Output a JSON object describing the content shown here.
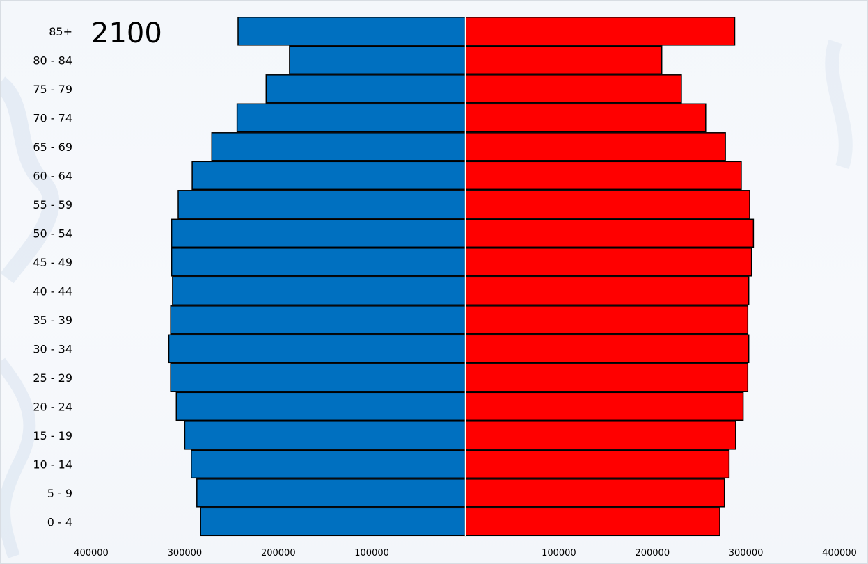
{
  "chart_data": {
    "type": "bar",
    "subtype": "population-pyramid",
    "title": "2100",
    "categories": [
      "85+",
      "80 - 84",
      "75 - 79",
      "70 - 74",
      "65 - 69",
      "60 - 64",
      "55 - 59",
      "50 - 54",
      "45 - 49",
      "40 - 44",
      "35 - 39",
      "30 - 34",
      "25 - 29",
      "20 - 24",
      "15 - 19",
      "10 - 14",
      "5 - 9",
      "0 - 4"
    ],
    "series": [
      {
        "color": "#0070c0",
        "side": "left",
        "values": [
          243000,
          188000,
          213000,
          244000,
          271000,
          292000,
          307000,
          314000,
          314000,
          313000,
          315000,
          317000,
          315000,
          309000,
          300000,
          293000,
          287000,
          283000
        ]
      },
      {
        "color": "#ff0000",
        "side": "right",
        "values": [
          288000,
          210000,
          231000,
          257000,
          278000,
          295000,
          304000,
          308000,
          306000,
          303000,
          302000,
          303000,
          302000,
          297000,
          289000,
          282000,
          277000,
          272000
        ]
      }
    ],
    "xlim": [
      -400000,
      400000
    ],
    "x_ticks": [
      {
        "value": -400000,
        "label": "400000"
      },
      {
        "value": -300000,
        "label": "300000"
      },
      {
        "value": -200000,
        "label": "200000"
      },
      {
        "value": -100000,
        "label": "100000"
      },
      {
        "value": 100000,
        "label": "100000"
      },
      {
        "value": 200000,
        "label": "200000"
      },
      {
        "value": 300000,
        "label": "300000"
      },
      {
        "value": 400000,
        "label": "400000"
      }
    ],
    "grid": false,
    "legend": "none"
  }
}
